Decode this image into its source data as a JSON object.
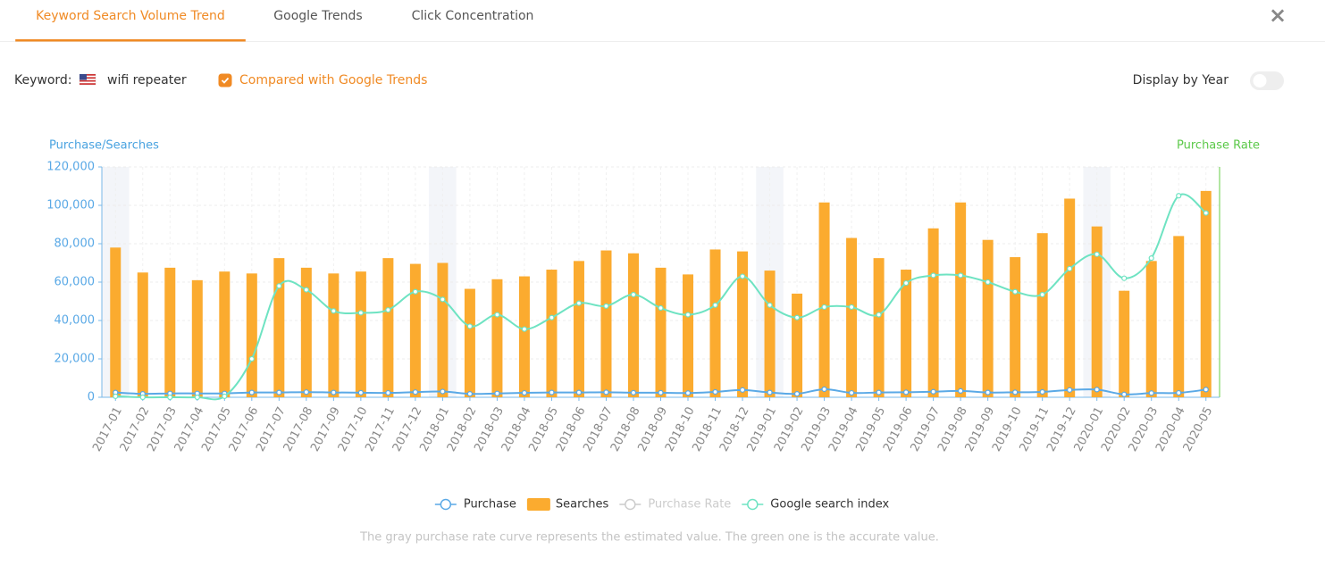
{
  "tabs": [
    {
      "label": "Keyword Search Volume Trend",
      "active": true
    },
    {
      "label": "Google Trends",
      "active": false
    },
    {
      "label": "Click Concentration",
      "active": false
    }
  ],
  "close_icon": "×",
  "keyword_label": "Keyword:",
  "keyword": "wifi repeater",
  "compare_label": "Compared with Google Trends",
  "compare_checked": true,
  "display_by_year_label": "Display by Year",
  "display_by_year_on": false,
  "chart_data": {
    "type": "combo",
    "y_label": "Purchase/Searches",
    "y2_label": "Purchase Rate",
    "categories": [
      "2017-01",
      "2017-02",
      "2017-03",
      "2017-04",
      "2017-05",
      "2017-06",
      "2017-07",
      "2017-08",
      "2017-09",
      "2017-10",
      "2017-11",
      "2017-12",
      "2018-01",
      "2018-02",
      "2018-03",
      "2018-04",
      "2018-05",
      "2018-06",
      "2018-07",
      "2018-08",
      "2018-09",
      "2018-10",
      "2018-11",
      "2018-12",
      "2019-01",
      "2019-02",
      "2019-03",
      "2019-04",
      "2019-05",
      "2019-06",
      "2019-07",
      "2019-08",
      "2019-09",
      "2019-10",
      "2019-11",
      "2019-12",
      "2020-01",
      "2020-02",
      "2020-03",
      "2020-04",
      "2020-05"
    ],
    "ylim": [
      0,
      120000
    ],
    "yticks": [
      0,
      {
        "value": 20000,
        "label": "20,000"
      },
      {
        "value": 40000,
        "label": "40,000"
      },
      {
        "value": 60000,
        "label": "60,000"
      },
      {
        "value": 80000,
        "label": "80,000"
      },
      {
        "value": 100000,
        "label": "100,000"
      },
      {
        "value": 120000,
        "label": "120,000"
      }
    ],
    "grid": true,
    "series": [
      {
        "name": "Purchase",
        "type": "line",
        "color": "#5aa9e6",
        "values": [
          2500,
          1800,
          2000,
          2000,
          2000,
          2500,
          2500,
          2700,
          2500,
          2400,
          2300,
          2700,
          3000,
          1800,
          2000,
          2300,
          2500,
          2500,
          2600,
          2400,
          2400,
          2200,
          2800,
          3800,
          2500,
          1800,
          4200,
          2300,
          2500,
          2600,
          2900,
          3300,
          2500,
          2600,
          2800,
          3800,
          4000,
          1500,
          2200,
          2300,
          4000
        ]
      },
      {
        "name": "Searches",
        "type": "bar",
        "color": "#fbab2f",
        "values": [
          78000,
          65000,
          67500,
          61000,
          65500,
          64500,
          72500,
          67500,
          64500,
          65500,
          72500,
          69500,
          70000,
          56500,
          61500,
          63000,
          66500,
          71000,
          76500,
          75000,
          67500,
          64000,
          77000,
          76000,
          66000,
          54000,
          101500,
          83000,
          72500,
          66500,
          88000,
          101500,
          82000,
          73000,
          85500,
          103500,
          89000,
          55500,
          71000,
          84000,
          107500
        ]
      },
      {
        "name": "Purchase Rate",
        "type": "line",
        "color": "#cccccc",
        "hidden": true
      },
      {
        "name": "Google search index",
        "type": "line",
        "color": "#6ee3c2",
        "values": [
          500,
          0,
          0,
          0,
          500,
          20000,
          58000,
          56000,
          45000,
          44000,
          45500,
          55000,
          51000,
          37000,
          43000,
          35500,
          41500,
          49000,
          47500,
          53500,
          46500,
          43000,
          48000,
          63000,
          48000,
          41500,
          47000,
          47000,
          43000,
          59500,
          63500,
          63500,
          60000,
          55000,
          53500,
          67000,
          74500,
          62000,
          72500,
          105000,
          96000
        ]
      }
    ]
  },
  "footnote": "The gray purchase rate curve represents the estimated value. The green one is the accurate value."
}
